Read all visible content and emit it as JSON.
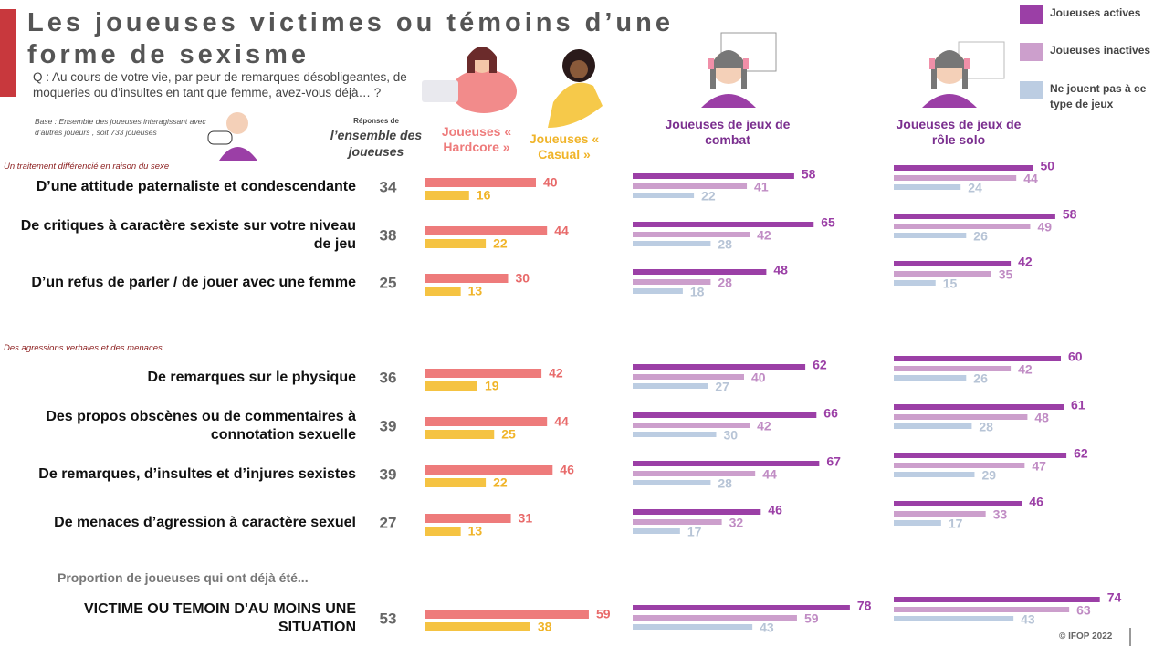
{
  "chart_data": {
    "type": "bar",
    "title": "Les joueuses victimes ou témoins d’une forme de sexisme",
    "question": "Q : Au cours de votre vie, par peur de remarques désobligeantes, de moqueries ou d’insultes en tant que femme, avez-vous déjà… ?",
    "base": "Base : Ensemble des joueuses interagissant avec d’autres joueurs , soit 733 joueuses",
    "overall_header": {
      "small": "Réponses de",
      "main": "l’ensemble des joueuses"
    },
    "columns": {
      "hardcore": {
        "name": "Joueuses « Hardcore »",
        "color": "#ee7b7b"
      },
      "casual": {
        "name": "Joueuses « Casual »",
        "color": "#f5c342"
      },
      "combat": {
        "name": "Joueuses de jeux de combat"
      },
      "rpg": {
        "name": "Joueuses de jeux de rôle solo"
      }
    },
    "series": [
      {
        "name": "Joueuses actives",
        "color": "#9b3fa6"
      },
      {
        "name": "Joueuses inactives",
        "color": "#cc9fcc"
      },
      {
        "name": "Ne jouent pas à ce type de jeux",
        "color": "#bccde2"
      }
    ],
    "sections": [
      {
        "title": "Un traitement différencié en raison du sexe",
        "rows": [
          {
            "label": "D’une attitude paternaliste et condescendante",
            "overall": 34,
            "hardcore": 40,
            "casual": 16,
            "combat": [
              58,
              41,
              22
            ],
            "rpg": [
              50,
              44,
              24
            ]
          },
          {
            "label": "De critiques à caractère sexiste sur votre niveau de jeu",
            "overall": 38,
            "hardcore": 44,
            "casual": 22,
            "combat": [
              65,
              42,
              28
            ],
            "rpg": [
              58,
              49,
              26
            ]
          },
          {
            "label": "D’un refus de parler / de jouer avec une femme",
            "overall": 25,
            "hardcore": 30,
            "casual": 13,
            "combat": [
              48,
              28,
              18
            ],
            "rpg": [
              42,
              35,
              15
            ]
          }
        ]
      },
      {
        "title": "Des agressions verbales et des menaces",
        "rows": [
          {
            "label": "De remarques sur le physique",
            "overall": 36,
            "hardcore": 42,
            "casual": 19,
            "combat": [
              62,
              40,
              27
            ],
            "rpg": [
              60,
              42,
              26
            ]
          },
          {
            "label": "Des propos obscènes ou de commentaires à connotation sexuelle",
            "overall": 39,
            "hardcore": 44,
            "casual": 25,
            "combat": [
              66,
              42,
              30
            ],
            "rpg": [
              61,
              48,
              28
            ]
          },
          {
            "label": "De remarques, d’insultes et d’injures sexistes",
            "overall": 39,
            "hardcore": 46,
            "casual": 22,
            "combat": [
              67,
              44,
              28
            ],
            "rpg": [
              62,
              47,
              29
            ]
          },
          {
            "label": "De menaces d’agression à caractère sexuel",
            "overall": 27,
            "hardcore": 31,
            "casual": 13,
            "combat": [
              46,
              32,
              17
            ],
            "rpg": [
              46,
              33,
              17
            ]
          }
        ]
      },
      {
        "title": "Proportion de joueuses qui ont déjà été...",
        "rows": [
          {
            "label": "VICTIME OU TEMOIN D'AU MOINS UNE SITUATION",
            "overall": 53,
            "hardcore": 59,
            "casual": 38,
            "combat": [
              78,
              59,
              43
            ],
            "rpg": [
              74,
              63,
              43
            ]
          }
        ]
      }
    ],
    "copyright": "© IFOP 2022"
  }
}
